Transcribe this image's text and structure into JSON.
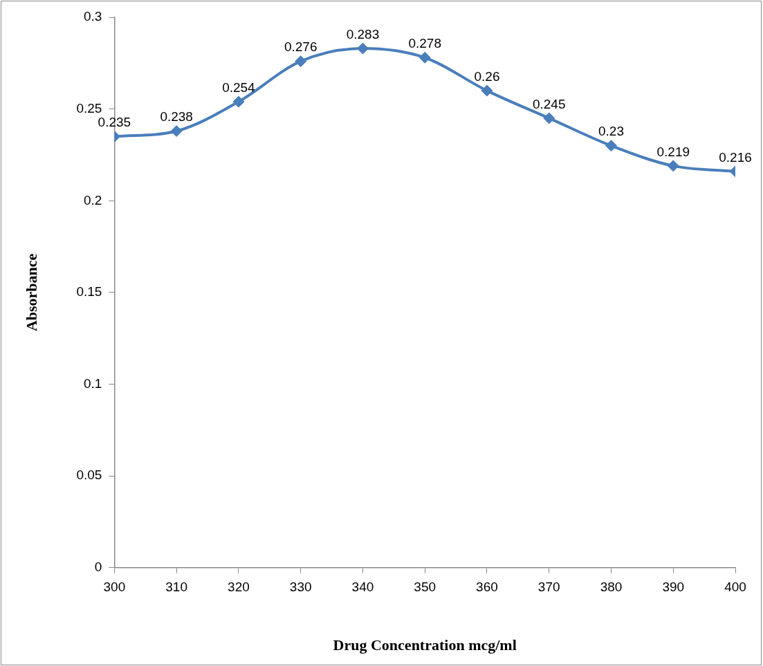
{
  "chart_data": {
    "type": "line",
    "xlabel": "Drug Concentration mcg/ml",
    "ylabel": "Absorbance",
    "x": [
      300,
      310,
      320,
      330,
      340,
      350,
      360,
      370,
      380,
      390,
      400
    ],
    "series": [
      {
        "color": "#4a7ebb",
        "values": [
          0.235,
          0.238,
          0.254,
          0.276,
          0.283,
          0.278,
          0.26,
          0.245,
          0.23,
          0.219,
          0.216
        ]
      }
    ],
    "xlim": [
      300,
      400
    ],
    "xticks": [
      300,
      310,
      320,
      330,
      340,
      350,
      360,
      370,
      380,
      390,
      400
    ],
    "ylim": [
      0,
      0.3
    ],
    "yticks": [
      0,
      0.05,
      0.1,
      0.15,
      0.2,
      0.25,
      0.3
    ],
    "grid": false,
    "legend": false,
    "marker": "diamond",
    "line_style": "solid",
    "data_labels": true
  }
}
